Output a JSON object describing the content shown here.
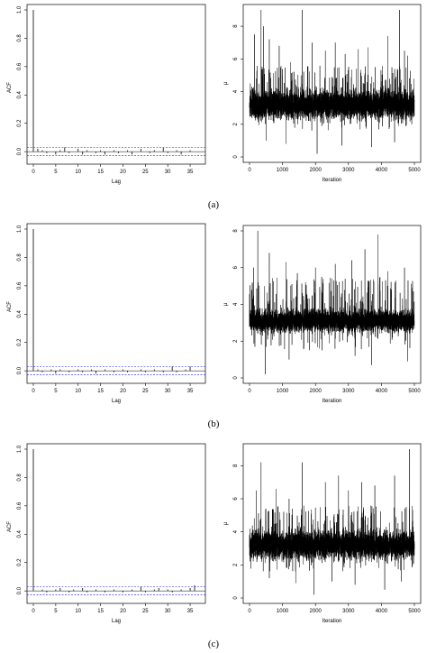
{
  "chart_data": [
    {
      "type": "bar",
      "panel": "(a)",
      "xlabel": "Lag",
      "ylabel": "ACF",
      "xlim": [
        0,
        37
      ],
      "ylim": [
        -0.05,
        1.0
      ],
      "x_ticks": [
        0,
        5,
        10,
        15,
        20,
        25,
        30,
        35
      ],
      "y_ticks": [
        "0.0",
        "0.2",
        "0.4",
        "0.6",
        "0.8",
        "1.0"
      ],
      "confidence_band": 0.028,
      "lags": [
        0,
        1,
        2,
        3,
        4,
        5,
        6,
        7,
        8,
        9,
        10,
        11,
        12,
        13,
        14,
        15,
        16,
        17,
        18,
        19,
        20,
        21,
        22,
        23,
        24,
        25,
        26,
        27,
        28,
        29,
        30,
        31,
        32,
        33,
        34,
        35,
        36
      ],
      "values": [
        1.0,
        0.02,
        0.01,
        -0.01,
        0.0,
        -0.02,
        0.01,
        0.03,
        -0.01,
        0.0,
        0.02,
        -0.02,
        0.01,
        0.0,
        -0.01,
        0.01,
        -0.02,
        0.0,
        0.01,
        -0.01,
        0.0,
        0.01,
        -0.02,
        0.0,
        0.02,
        0.0,
        -0.01,
        0.01,
        0.0,
        0.03,
        -0.01,
        0.0,
        0.01,
        -0.02,
        0.0,
        0.01,
        0.0
      ]
    },
    {
      "type": "line",
      "panel": "(a)",
      "xlabel": "Iteration",
      "ylabel": "μ",
      "xlim": [
        0,
        5000
      ],
      "ylim": [
        0,
        9
      ],
      "x_ticks": [
        0,
        1000,
        2000,
        3000,
        4000,
        5000
      ],
      "y_ticks": [
        0,
        2,
        4,
        6,
        8
      ],
      "series": [
        {
          "n": 5000,
          "center": 3.2,
          "spread": 0.5,
          "spikes": [
            [
              150,
              7.5
            ],
            [
              350,
              9.0
            ],
            [
              420,
              8.0
            ],
            [
              600,
              7.2
            ],
            [
              900,
              6.8
            ],
            [
              1250,
              5.8
            ],
            [
              1600,
              9.3
            ],
            [
              1900,
              7.0
            ],
            [
              2300,
              6.5
            ],
            [
              2600,
              7.0
            ],
            [
              2900,
              6.3
            ],
            [
              3300,
              6.6
            ],
            [
              3600,
              6.7
            ],
            [
              4200,
              7.4
            ],
            [
              4550,
              9.5
            ],
            [
              4700,
              6.5
            ],
            [
              4800,
              6.2
            ]
          ],
          "dips": [
            [
              500,
              1.0
            ],
            [
              1100,
              0.8
            ],
            [
              2050,
              0.2
            ],
            [
              2800,
              0.7
            ],
            [
              3700,
              0.6
            ],
            [
              4400,
              0.9
            ]
          ]
        }
      ]
    },
    {
      "type": "bar",
      "panel": "(b)",
      "xlabel": "Lag",
      "ylabel": "ACF",
      "xlim": [
        0,
        37
      ],
      "ylim": [
        -0.05,
        1.0
      ],
      "x_ticks": [
        0,
        5,
        10,
        15,
        20,
        25,
        30,
        35
      ],
      "y_ticks": [
        "0.0",
        "0.2",
        "0.4",
        "0.6",
        "0.8",
        "1.0"
      ],
      "confidence_band": 0.028,
      "lags": [
        0,
        1,
        2,
        3,
        4,
        5,
        6,
        7,
        8,
        9,
        10,
        11,
        12,
        13,
        14,
        15,
        16,
        17,
        18,
        19,
        20,
        21,
        22,
        23,
        24,
        25,
        26,
        27,
        28,
        29,
        30,
        31,
        32,
        33,
        34,
        35,
        36
      ],
      "values": [
        1.0,
        0.01,
        -0.01,
        0.0,
        0.01,
        -0.02,
        0.01,
        0.0,
        -0.01,
        0.0,
        0.01,
        -0.01,
        0.0,
        0.01,
        -0.02,
        0.0,
        0.01,
        0.0,
        -0.01,
        0.0,
        0.01,
        -0.01,
        0.0,
        0.0,
        0.01,
        -0.01,
        0.0,
        0.01,
        0.0,
        -0.01,
        0.0,
        0.03,
        -0.01,
        0.0,
        0.01,
        0.03,
        0.0
      ]
    },
    {
      "type": "line",
      "panel": "(b)",
      "xlabel": "Iteration",
      "ylabel": "μ",
      "xlim": [
        0,
        5000
      ],
      "ylim": [
        0,
        8
      ],
      "x_ticks": [
        0,
        1000,
        2000,
        3000,
        4000,
        5000
      ],
      "y_ticks": [
        0,
        2,
        4,
        6,
        8
      ],
      "series": [
        {
          "n": 5000,
          "center": 3.1,
          "spread": 0.35,
          "spikes": [
            [
              120,
              6.0
            ],
            [
              250,
              8.0
            ],
            [
              600,
              6.8
            ],
            [
              1100,
              6.3
            ],
            [
              1450,
              5.7
            ],
            [
              2000,
              6.0
            ],
            [
              2600,
              6.2
            ],
            [
              3100,
              6.4
            ],
            [
              3500,
              7.0
            ],
            [
              3900,
              7.8
            ],
            [
              4200,
              5.8
            ],
            [
              4700,
              6.0
            ]
          ],
          "dips": [
            [
              480,
              0.2
            ],
            [
              1200,
              1.0
            ],
            [
              2200,
              1.5
            ],
            [
              3200,
              1.2
            ],
            [
              3700,
              0.7
            ],
            [
              4800,
              0.9
            ]
          ]
        }
      ]
    },
    {
      "type": "bar",
      "panel": "(c)",
      "xlabel": "Lag",
      "ylabel": "ACF",
      "xlim": [
        0,
        37
      ],
      "ylim": [
        -0.05,
        1.0
      ],
      "x_ticks": [
        0,
        5,
        10,
        15,
        20,
        25,
        30,
        35
      ],
      "y_ticks": [
        "0.0",
        "0.2",
        "0.4",
        "0.6",
        "0.8",
        "1.0"
      ],
      "confidence_band": 0.028,
      "lags": [
        0,
        1,
        2,
        3,
        4,
        5,
        6,
        7,
        8,
        9,
        10,
        11,
        12,
        13,
        14,
        15,
        16,
        17,
        18,
        19,
        20,
        21,
        22,
        23,
        24,
        25,
        26,
        27,
        28,
        29,
        30,
        31,
        32,
        33,
        34,
        35,
        36
      ],
      "values": [
        1.0,
        0.0,
        0.01,
        -0.01,
        0.0,
        0.01,
        0.02,
        0.0,
        -0.01,
        0.01,
        0.0,
        0.02,
        -0.01,
        0.0,
        0.01,
        0.0,
        -0.01,
        0.0,
        0.01,
        0.0,
        -0.01,
        0.0,
        0.01,
        0.0,
        0.03,
        -0.01,
        0.0,
        0.01,
        0.02,
        0.0,
        0.01,
        -0.01,
        0.0,
        0.01,
        0.0,
        0.02,
        0.04
      ]
    },
    {
      "type": "line",
      "panel": "(c)",
      "xlabel": "Iteration",
      "ylabel": "μ",
      "xlim": [
        0,
        5000
      ],
      "ylim": [
        0,
        9
      ],
      "x_ticks": [
        0,
        1000,
        2000,
        3000,
        4000,
        5000
      ],
      "y_ticks": [
        0,
        2,
        4,
        6,
        8
      ],
      "series": [
        {
          "n": 5000,
          "center": 3.2,
          "spread": 0.5,
          "spikes": [
            [
              200,
              6.5
            ],
            [
              350,
              8.2
            ],
            [
              800,
              6.6
            ],
            [
              1200,
              6.0
            ],
            [
              1600,
              8.2
            ],
            [
              1950,
              6.3
            ],
            [
              2300,
              7.0
            ],
            [
              2700,
              7.4
            ],
            [
              3000,
              6.5
            ],
            [
              3400,
              7.0
            ],
            [
              3800,
              6.8
            ],
            [
              4400,
              7.4
            ],
            [
              4850,
              9.2
            ]
          ],
          "dips": [
            [
              600,
              1.2
            ],
            [
              1400,
              0.9
            ],
            [
              1950,
              0.2
            ],
            [
              2500,
              1.0
            ],
            [
              3200,
              0.8
            ],
            [
              4100,
              0.5
            ],
            [
              4600,
              1.0
            ]
          ]
        }
      ]
    }
  ],
  "captions": [
    "(a)",
    "(b)",
    "(c)"
  ]
}
